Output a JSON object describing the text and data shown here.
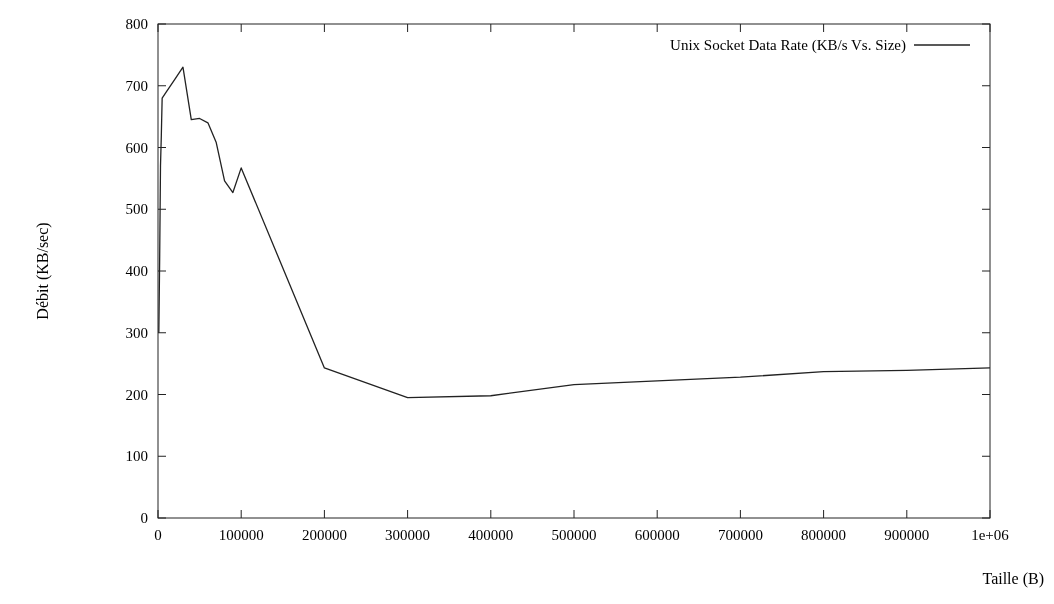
{
  "chart_data": {
    "type": "line",
    "xlabel": "Taille (B)",
    "ylabel": "Débit (KB/sec)",
    "x": [
      1000,
      2000,
      3000,
      4000,
      5000,
      10000,
      20000,
      30000,
      40000,
      50000,
      60000,
      70000,
      80000,
      90000,
      100000,
      200000,
      300000,
      400000,
      500000,
      600000,
      700000,
      800000,
      900000,
      1000000
    ],
    "series": [
      {
        "name": "Unix Socket Data Rate (KB/s Vs. Size)",
        "color": "#222222",
        "values": [
          300,
          420,
          570,
          620,
          680,
          690,
          710,
          730,
          645,
          647,
          640,
          608,
          546,
          527,
          567,
          243,
          195,
          198,
          216,
          222,
          228,
          237,
          239,
          243
        ]
      }
    ],
    "xlim": [
      0,
      1000000
    ],
    "ylim": [
      0,
      800
    ],
    "xticks": [
      0,
      100000,
      200000,
      300000,
      400000,
      500000,
      600000,
      700000,
      800000,
      900000,
      {
        "value": 1000000,
        "label": "1e+06"
      }
    ],
    "yticks": [
      0,
      100,
      200,
      300,
      400,
      500,
      600,
      700,
      800
    ],
    "grid": false,
    "legend": "top right",
    "marker": "none",
    "line_style": "solid"
  }
}
